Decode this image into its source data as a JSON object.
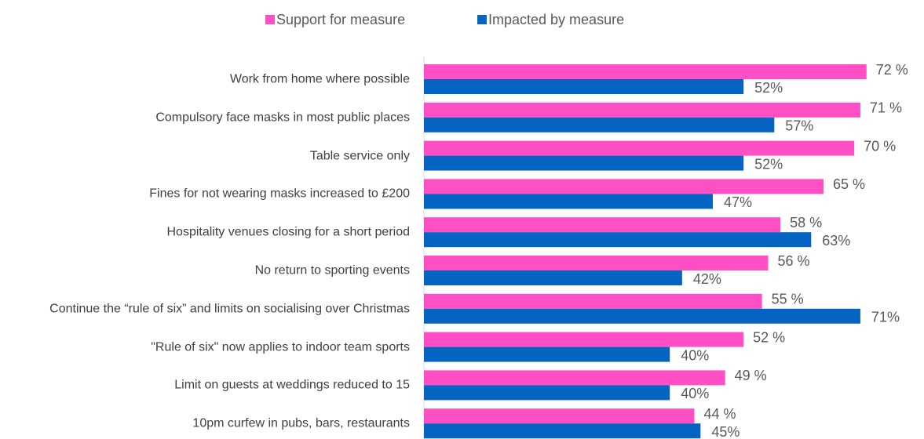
{
  "chart_data": {
    "type": "bar",
    "orientation": "horizontal",
    "categories": [
      "Work from home where possible",
      "Compulsory face masks in most public places",
      "Table service only",
      "Fines for not wearing masks increased to £200",
      "Hospitality venues closing for a short period",
      "No return to sporting events",
      "Continue the “rule of six” and limits on socialising over Christmas",
      "\"Rule of six\" now applies to indoor team sports",
      "Limit on guests at weddings reduced to 15",
      "10pm curfew in pubs, bars, restaurants"
    ],
    "series": [
      {
        "name": "Support for measure",
        "color": "#ff4fc4",
        "values": [
          72,
          71,
          70,
          65,
          58,
          56,
          55,
          52,
          49,
          44
        ],
        "value_labels": [
          "72 %",
          "71 %",
          "70 %",
          "65 %",
          "58 %",
          "56 %",
          "55 %",
          "52 %",
          "49 %",
          "44 %"
        ]
      },
      {
        "name": "Impacted by measure",
        "color": "#0563c1",
        "values": [
          52,
          57,
          52,
          47,
          63,
          42,
          71,
          40,
          40,
          45
        ],
        "value_labels": [
          "52%",
          "57%",
          "52%",
          "47%",
          "63%",
          "42%",
          "71%",
          "40%",
          "40%",
          "45%"
        ]
      }
    ],
    "legend": "top"
  }
}
